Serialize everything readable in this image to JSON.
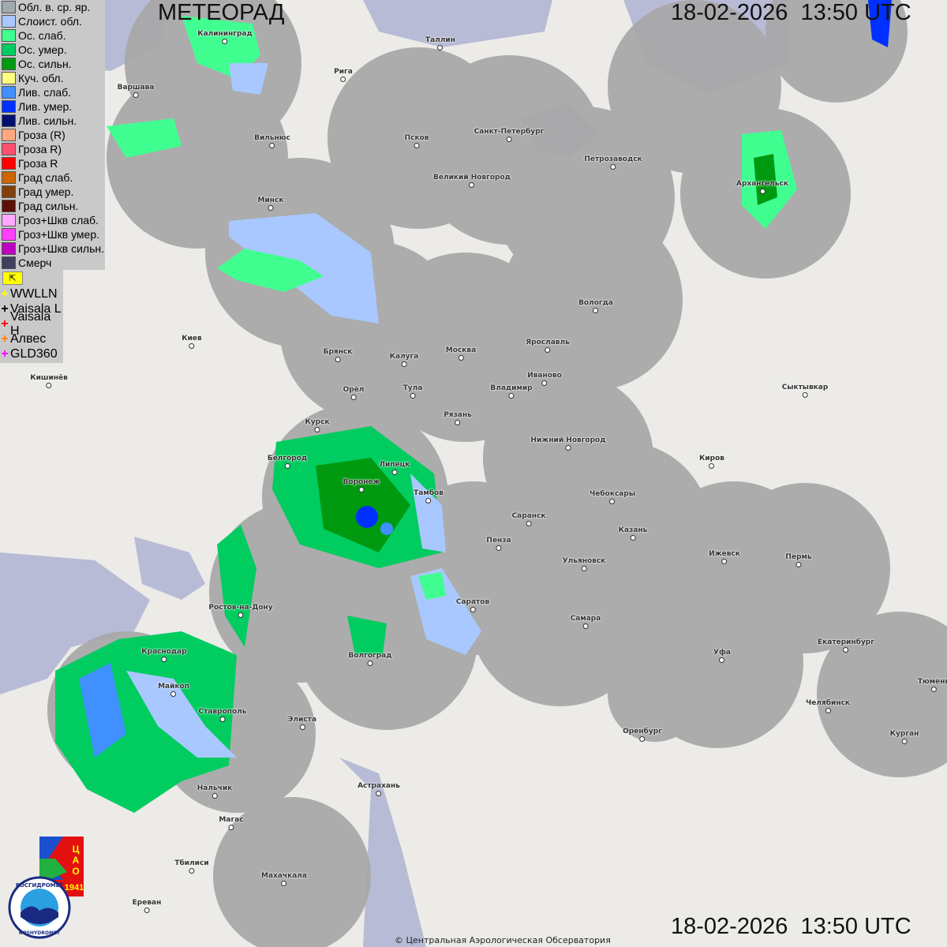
{
  "header": {
    "title": "МЕТЕОРАД",
    "timestamp_top": "18-02-2026  13:50 UTC",
    "timestamp_bottom": "18-02-2026  13:50 UTC"
  },
  "legend": {
    "items": [
      {
        "label": "Обл. в. ср. яр.",
        "color": "#a0a8b0"
      },
      {
        "label": "Слоист. обл.",
        "color": "#a8c8ff"
      },
      {
        "label": "Ос. слаб.",
        "color": "#40ff90"
      },
      {
        "label": "Ос. умер.",
        "color": "#00cc60"
      },
      {
        "label": "Ос. сильн.",
        "color": "#009a10"
      },
      {
        "label": "Куч. обл.",
        "color": "#ffff80"
      },
      {
        "label": "Лив. слаб.",
        "color": "#4090ff"
      },
      {
        "label": "Лив. умер.",
        "color": "#0030ff"
      },
      {
        "label": "Лив. сильн.",
        "color": "#001070"
      },
      {
        "label": "Гроза (R)",
        "color": "#ffa880"
      },
      {
        "label": "Гроза R)",
        "color": "#ff5070"
      },
      {
        "label": "Гроза R",
        "color": "#ff0000"
      },
      {
        "label": "Град слаб.",
        "color": "#cc6600"
      },
      {
        "label": "Град умер.",
        "color": "#80400c"
      },
      {
        "label": "Град сильн.",
        "color": "#5a1005"
      },
      {
        "label": "Гроз+Шкв слаб.",
        "color": "#ffa8ff"
      },
      {
        "label": "Гроз+Шкв умер.",
        "color": "#ff40ff"
      },
      {
        "label": "Гроз+Шкв сильн.",
        "color": "#c000c0"
      },
      {
        "label": "Смерч",
        "color": "#404060"
      }
    ],
    "lightning": [
      {
        "label": "WWLLN",
        "color": "#ffff00"
      },
      {
        "label": "Vaisala L",
        "color": "#000000"
      },
      {
        "label": "Vaisala H",
        "color": "#ff0000"
      },
      {
        "label": "Алвес",
        "color": "#ff8000"
      },
      {
        "label": "GLD360",
        "color": "#ff00ff"
      }
    ]
  },
  "cities": [
    "Калининград",
    "Варшава",
    "Рига",
    "Таллин",
    "Вильнюс",
    "Псков",
    "Санкт-Петербург",
    "Петрозаводск",
    "Великий Новгород",
    "Архангельск",
    "Минск",
    "Вологда",
    "Киев",
    "Брянск",
    "Калуга",
    "Москва",
    "Ярославль",
    "Иваново",
    "Кишинёв",
    "Орёл",
    "Тула",
    "Владимир",
    "Сыктывкар",
    "Рязань",
    "Курск",
    "Нижний Новгород",
    "Белгород",
    "Липецк",
    "Киров",
    "Воронеж",
    "Тамбов",
    "Чебоксары",
    "Саранск",
    "Казань",
    "Пенза",
    "Ижевск",
    "Пермь",
    "Ульяновск",
    "Ростов-на-Дону",
    "Саратов",
    "Самара",
    "Екатеринбург",
    "Краснодар",
    "Волгоград",
    "Уфа",
    "Майкоп",
    "Тюмень",
    "Челябинск",
    "Ставрополь",
    "Элиста",
    "Оренбург",
    "Курган",
    "Нальчик",
    "Астрахань",
    "Магас",
    "Тбилиси",
    "Махачкала",
    "Ереван"
  ],
  "logos": {
    "cao": "ЦАО 1941",
    "roshydromet": "РОСГИДРОМЕТ ROSHYDROMET"
  },
  "copyright": "© Центральная Аэрологическая Обсерватория"
}
